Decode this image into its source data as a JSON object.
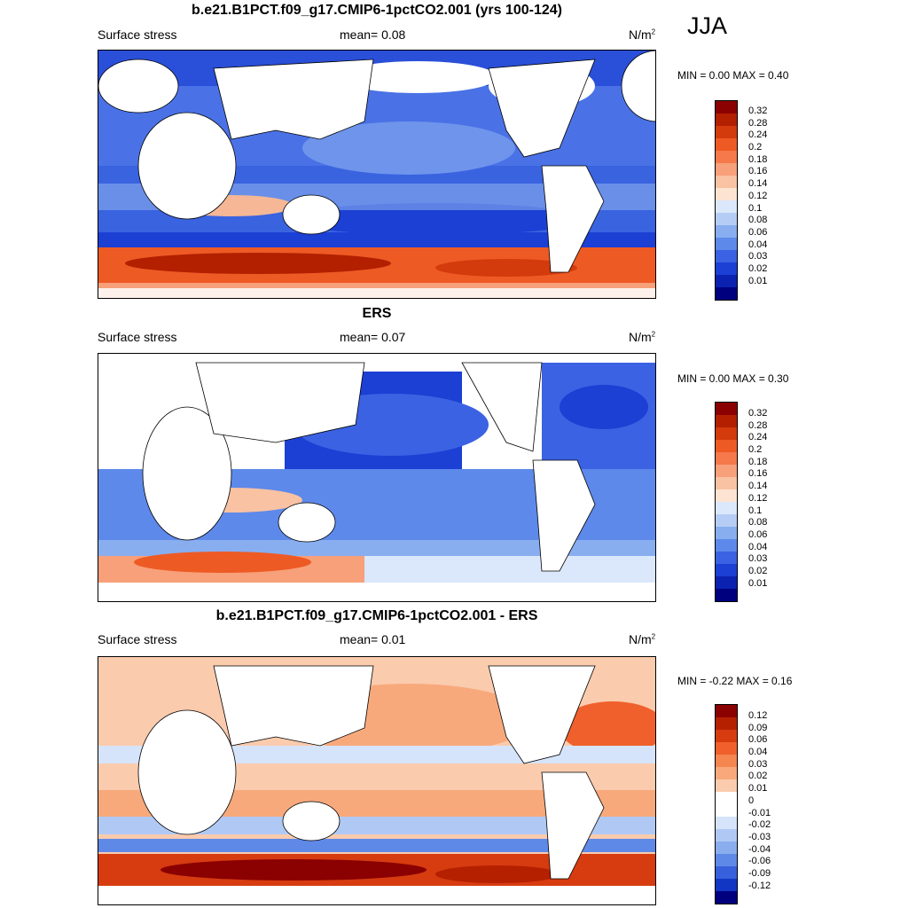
{
  "season": "JJA",
  "panels": [
    {
      "title": "b.e21.B1PCT.f09_g17.CMIP6-1pctCO2.001 (yrs 100-124)",
      "variable": "Surface stress",
      "mean": "mean=   0.08",
      "units": "N/m",
      "units_exp": "2",
      "minmax": "MIN =   0.00 MAX =   0.40",
      "colorbar_labels": [
        "0.32",
        "0.28",
        "0.24",
        "0.2",
        "0.18",
        "0.16",
        "0.14",
        "0.12",
        "0.1",
        "0.08",
        "0.06",
        "0.04",
        "0.03",
        "0.02",
        "0.01"
      ]
    },
    {
      "title": "ERS",
      "variable": "Surface stress",
      "mean": "mean=   0.07",
      "units": "N/m",
      "units_exp": "2",
      "minmax": "MIN =   0.00 MAX =   0.30",
      "colorbar_labels": [
        "0.32",
        "0.28",
        "0.24",
        "0.2",
        "0.18",
        "0.16",
        "0.14",
        "0.12",
        "0.1",
        "0.08",
        "0.06",
        "0.04",
        "0.03",
        "0.02",
        "0.01"
      ]
    },
    {
      "title": "b.e21.B1PCT.f09_g17.CMIP6-1pctCO2.001 - ERS",
      "variable": "Surface stress",
      "mean": "mean=   0.01",
      "units": "N/m",
      "units_exp": "2",
      "minmax": "MIN =  -0.22 MAX =   0.16",
      "colorbar_labels": [
        "0.12",
        "0.09",
        "0.06",
        "0.04",
        "0.03",
        "0.02",
        "0.01",
        "0",
        "-0.01",
        "-0.02",
        "-0.03",
        "-0.04",
        "-0.06",
        "-0.09",
        "-0.12"
      ]
    }
  ],
  "colors": {
    "mag_scale": [
      "#8b0000",
      "#b22000",
      "#d33a0c",
      "#ee5a24",
      "#f5794a",
      "#f7a07a",
      "#f9c2a2",
      "#fde4d2",
      "#dbe8fb",
      "#b5cdf5",
      "#88aeef",
      "#5d89ea",
      "#3b62e2",
      "#1c3fd4",
      "#0b22b0",
      "#00007f"
    ],
    "diff_scale": [
      "#8b0000",
      "#b52000",
      "#d63c10",
      "#f0602c",
      "#f5864f",
      "#f8a97c",
      "#fbcbad",
      "#ffffff",
      "#ffffff",
      "#d6e4fb",
      "#b0c9f4",
      "#8aaeed",
      "#5f89e6",
      "#3760dc",
      "#1236c4",
      "#00007f"
    ]
  }
}
